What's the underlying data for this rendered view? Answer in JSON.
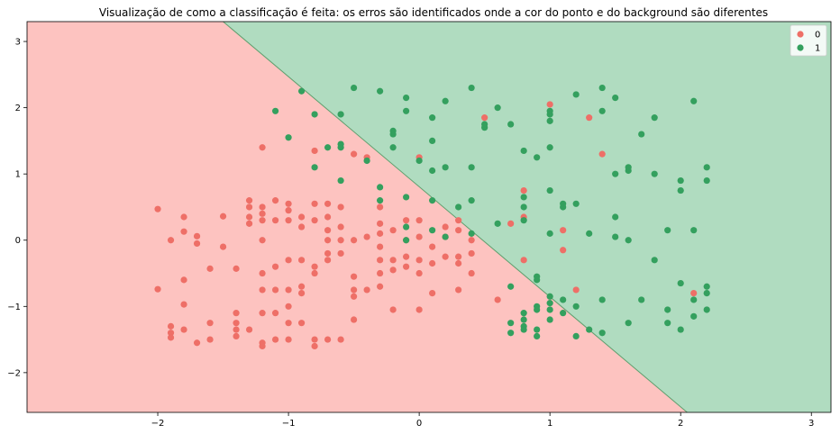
{
  "chart_data": {
    "type": "scatter",
    "title": "Visualização de como a classificação é feita: os erros são identificados onde a cor do ponto e do background são diferentes",
    "xlabel": "",
    "ylabel": "",
    "xlim": [
      -3.0,
      3.15
    ],
    "ylim": [
      -2.6,
      3.3
    ],
    "xticks": [
      -2,
      -1,
      0,
      1,
      2,
      3
    ],
    "yticks": [
      -2,
      -1,
      0,
      1,
      2,
      3
    ],
    "grid": false,
    "legend_position": "top-right",
    "background_regions": [
      {
        "class": "0",
        "color": "#fdc3c0"
      },
      {
        "class": "1",
        "color": "#b0dcc0"
      }
    ],
    "decision_boundary": {
      "points": [
        [
          -1.5,
          3.3
        ],
        [
          2.05,
          -2.6
        ]
      ]
    },
    "series": [
      {
        "name": "0",
        "color": "#ee6f67",
        "points": [
          [
            -2.0,
            0.47
          ],
          [
            -1.9,
            0.0
          ],
          [
            -1.8,
            0.35
          ],
          [
            -1.8,
            0.13
          ],
          [
            -1.7,
            0.06
          ],
          [
            -1.7,
            -0.05
          ],
          [
            -1.5,
            0.36
          ],
          [
            -1.5,
            -0.1
          ],
          [
            -1.6,
            -0.43
          ],
          [
            -1.8,
            -0.6
          ],
          [
            -1.4,
            -0.43
          ],
          [
            -2.0,
            -0.74
          ],
          [
            -1.8,
            -0.97
          ],
          [
            -1.9,
            -1.3
          ],
          [
            -1.9,
            -1.4
          ],
          [
            -1.9,
            -1.47
          ],
          [
            -1.8,
            -1.35
          ],
          [
            -1.7,
            -1.55
          ],
          [
            -1.6,
            -1.5
          ],
          [
            -1.6,
            -1.25
          ],
          [
            -1.4,
            -1.1
          ],
          [
            -1.4,
            -1.25
          ],
          [
            -1.4,
            -1.35
          ],
          [
            -1.4,
            -1.45
          ],
          [
            -1.3,
            -1.35
          ],
          [
            -1.2,
            -1.55
          ],
          [
            -1.2,
            -1.6
          ],
          [
            -1.1,
            -1.5
          ],
          [
            -1.2,
            -1.1
          ],
          [
            -1.1,
            -1.1
          ],
          [
            -1.0,
            -1.25
          ],
          [
            -1.0,
            -1.0
          ],
          [
            -1.0,
            -1.5
          ],
          [
            -1.2,
            -0.75
          ],
          [
            -1.1,
            -0.75
          ],
          [
            -1.0,
            -0.75
          ],
          [
            -0.9,
            -0.7
          ],
          [
            -0.9,
            -0.8
          ],
          [
            -1.2,
            -0.5
          ],
          [
            -1.1,
            -0.4
          ],
          [
            -1.0,
            -0.3
          ],
          [
            -0.9,
            -0.3
          ],
          [
            -0.8,
            -0.4
          ],
          [
            -0.8,
            -0.5
          ],
          [
            -0.7,
            -0.2
          ],
          [
            -0.7,
            -0.3
          ],
          [
            -0.6,
            -0.2
          ],
          [
            -1.3,
            0.6
          ],
          [
            -1.3,
            0.5
          ],
          [
            -1.3,
            0.35
          ],
          [
            -1.3,
            0.25
          ],
          [
            -1.2,
            0.5
          ],
          [
            -1.2,
            0.4
          ],
          [
            -1.2,
            0.3
          ],
          [
            -1.2,
            0.0
          ],
          [
            -1.1,
            0.6
          ],
          [
            -1.1,
            0.3
          ],
          [
            -1.0,
            0.55
          ],
          [
            -1.0,
            0.45
          ],
          [
            -1.0,
            0.3
          ],
          [
            -0.9,
            0.35
          ],
          [
            -0.9,
            0.2
          ],
          [
            -0.8,
            0.55
          ],
          [
            -0.8,
            0.3
          ],
          [
            -0.7,
            0.55
          ],
          [
            -0.7,
            0.35
          ],
          [
            -0.7,
            0.15
          ],
          [
            -0.7,
            0.0
          ],
          [
            -0.6,
            0.5
          ],
          [
            -0.6,
            0.2
          ],
          [
            -0.6,
            0.0
          ],
          [
            -0.5,
            0.0
          ],
          [
            -0.4,
            0.05
          ],
          [
            -0.3,
            0.1
          ],
          [
            -0.3,
            -0.1
          ],
          [
            -0.3,
            -0.3
          ],
          [
            -0.3,
            -0.5
          ],
          [
            -0.3,
            -0.7
          ],
          [
            -0.4,
            -0.75
          ],
          [
            -0.5,
            -0.75
          ],
          [
            -0.5,
            -0.85
          ],
          [
            -0.5,
            -0.55
          ],
          [
            -0.2,
            -0.3
          ],
          [
            -0.2,
            -0.45
          ],
          [
            -0.1,
            -0.25
          ],
          [
            -0.1,
            -0.4
          ],
          [
            0.0,
            -0.3
          ],
          [
            0.0,
            -0.5
          ],
          [
            0.1,
            -0.1
          ],
          [
            0.1,
            -0.35
          ],
          [
            0.2,
            -0.25
          ],
          [
            0.3,
            -0.25
          ],
          [
            0.3,
            -0.35
          ],
          [
            0.4,
            -0.2
          ],
          [
            0.4,
            -0.5
          ],
          [
            0.3,
            -0.75
          ],
          [
            0.1,
            -0.8
          ],
          [
            0.0,
            -1.05
          ],
          [
            -0.2,
            -1.05
          ],
          [
            -0.5,
            -1.2
          ],
          [
            -0.7,
            -1.5
          ],
          [
            -0.8,
            -1.5
          ],
          [
            -0.8,
            -1.6
          ],
          [
            -0.6,
            -1.5
          ],
          [
            -0.9,
            -1.25
          ],
          [
            -0.1,
            0.0
          ],
          [
            0.0,
            0.05
          ],
          [
            0.0,
            0.3
          ],
          [
            -0.1,
            0.3
          ],
          [
            -0.2,
            0.15
          ],
          [
            -0.3,
            0.25
          ],
          [
            -0.3,
            0.5
          ],
          [
            -0.4,
            1.25
          ],
          [
            -0.5,
            1.3
          ],
          [
            -0.8,
            1.35
          ],
          [
            -1.2,
            1.4
          ],
          [
            0.0,
            1.25
          ],
          [
            0.5,
            1.85
          ],
          [
            1.0,
            2.05
          ],
          [
            1.3,
            1.85
          ],
          [
            1.4,
            1.3
          ],
          [
            0.8,
            0.75
          ],
          [
            0.8,
            0.35
          ],
          [
            0.8,
            -0.3
          ],
          [
            0.6,
            -0.9
          ],
          [
            1.2,
            -0.75
          ],
          [
            1.1,
            0.15
          ],
          [
            1.1,
            -0.15
          ],
          [
            2.1,
            -0.8
          ],
          [
            0.3,
            0.3
          ],
          [
            0.2,
            0.2
          ],
          [
            0.4,
            0.0
          ],
          [
            0.7,
            0.25
          ],
          [
            0.2,
            0.05
          ],
          [
            0.3,
            0.15
          ]
        ]
      },
      {
        "name": "1",
        "color": "#34a05e",
        "points": [
          [
            -0.9,
            2.25
          ],
          [
            -1.1,
            1.95
          ],
          [
            -1.0,
            1.55
          ],
          [
            -0.8,
            1.9
          ],
          [
            -0.6,
            1.9
          ],
          [
            -0.5,
            2.3
          ],
          [
            -0.3,
            2.25
          ],
          [
            -0.1,
            2.15
          ],
          [
            -0.1,
            1.95
          ],
          [
            -0.2,
            1.65
          ],
          [
            -0.2,
            1.6
          ],
          [
            -0.2,
            1.4
          ],
          [
            -0.4,
            1.2
          ],
          [
            -0.6,
            1.45
          ],
          [
            -0.6,
            1.4
          ],
          [
            -0.7,
            1.4
          ],
          [
            -0.8,
            1.1
          ],
          [
            -0.6,
            0.9
          ],
          [
            -0.3,
            0.8
          ],
          [
            -0.3,
            0.6
          ],
          [
            -0.1,
            0.65
          ],
          [
            0.0,
            1.2
          ],
          [
            0.1,
            1.05
          ],
          [
            0.2,
            1.1
          ],
          [
            0.1,
            1.5
          ],
          [
            0.1,
            1.85
          ],
          [
            0.2,
            2.1
          ],
          [
            0.4,
            2.3
          ],
          [
            0.6,
            2.0
          ],
          [
            0.5,
            1.75
          ],
          [
            0.7,
            1.75
          ],
          [
            0.8,
            1.35
          ],
          [
            0.9,
            1.25
          ],
          [
            1.0,
            1.9
          ],
          [
            1.0,
            1.8
          ],
          [
            1.0,
            1.95
          ],
          [
            1.0,
            1.4
          ],
          [
            1.2,
            2.2
          ],
          [
            1.4,
            2.3
          ],
          [
            1.4,
            1.95
          ],
          [
            1.5,
            2.15
          ],
          [
            1.8,
            1.85
          ],
          [
            1.7,
            1.6
          ],
          [
            1.5,
            1.0
          ],
          [
            1.6,
            1.05
          ],
          [
            1.6,
            1.1
          ],
          [
            1.8,
            1.0
          ],
          [
            2.0,
            0.9
          ],
          [
            2.0,
            0.75
          ],
          [
            2.2,
            1.1
          ],
          [
            2.2,
            0.9
          ],
          [
            2.1,
            2.1
          ],
          [
            0.4,
            1.1
          ],
          [
            0.4,
            0.6
          ],
          [
            0.3,
            0.5
          ],
          [
            0.1,
            0.6
          ],
          [
            -0.1,
            0.2
          ],
          [
            -0.1,
            0.0
          ],
          [
            0.1,
            0.15
          ],
          [
            0.2,
            0.05
          ],
          [
            0.4,
            0.1
          ],
          [
            0.6,
            0.25
          ],
          [
            0.8,
            0.5
          ],
          [
            0.8,
            0.3
          ],
          [
            0.8,
            0.65
          ],
          [
            1.0,
            0.75
          ],
          [
            1.1,
            0.55
          ],
          [
            1.1,
            0.5
          ],
          [
            1.2,
            0.55
          ],
          [
            1.0,
            0.1
          ],
          [
            1.3,
            0.1
          ],
          [
            1.5,
            0.35
          ],
          [
            1.5,
            0.05
          ],
          [
            1.6,
            0.0
          ],
          [
            1.9,
            0.15
          ],
          [
            2.1,
            0.15
          ],
          [
            1.8,
            -0.3
          ],
          [
            2.0,
            -0.65
          ],
          [
            2.2,
            -0.7
          ],
          [
            2.2,
            -0.8
          ],
          [
            2.1,
            -0.9
          ],
          [
            1.7,
            -0.9
          ],
          [
            1.4,
            -0.9
          ],
          [
            1.1,
            -0.9
          ],
          [
            1.0,
            -0.85
          ],
          [
            0.9,
            -0.6
          ],
          [
            0.9,
            -0.55
          ],
          [
            0.7,
            -0.7
          ],
          [
            0.9,
            -1.0
          ],
          [
            0.9,
            -1.05
          ],
          [
            0.8,
            -1.1
          ],
          [
            0.8,
            -1.2
          ],
          [
            0.7,
            -1.25
          ],
          [
            0.8,
            -1.3
          ],
          [
            0.7,
            -1.4
          ],
          [
            0.8,
            -1.35
          ],
          [
            0.9,
            -1.35
          ],
          [
            0.9,
            -1.45
          ],
          [
            1.0,
            -1.2
          ],
          [
            1.0,
            -1.05
          ],
          [
            1.0,
            -0.95
          ],
          [
            1.1,
            -1.1
          ],
          [
            1.2,
            -1.0
          ],
          [
            1.2,
            -1.45
          ],
          [
            1.3,
            -1.35
          ],
          [
            1.4,
            -1.4
          ],
          [
            1.6,
            -1.25
          ],
          [
            1.9,
            -1.05
          ],
          [
            1.9,
            -1.25
          ],
          [
            2.0,
            -1.35
          ],
          [
            2.1,
            -1.15
          ],
          [
            2.2,
            -1.05
          ],
          [
            0.5,
            1.7
          ]
        ]
      }
    ]
  }
}
